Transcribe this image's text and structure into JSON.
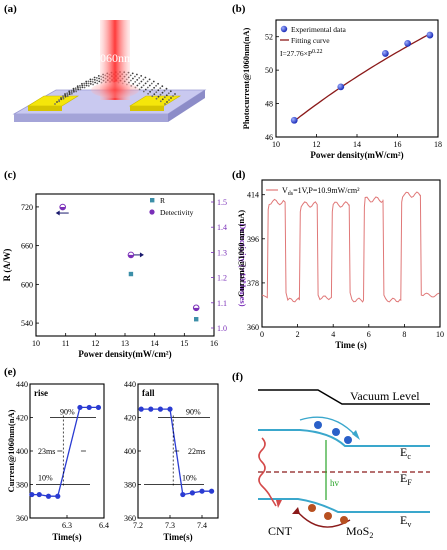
{
  "figure": {
    "panel_labels": [
      "(a)",
      "(b)",
      "(c)",
      "(d)",
      "(e)",
      "(f)"
    ],
    "colors": {
      "blue": "#2a3bd2",
      "darkred": "#8b1a1a",
      "purple": "#7a2fb8",
      "teal": "#3c8fa8",
      "pink": "#e07878",
      "green": "#2aa52a",
      "laser": "#e85a5a",
      "electrode": "#f5e60a",
      "substrate": "#b9b9e8",
      "band": "#3aa7cc",
      "fermi": "#8b1a1a"
    }
  },
  "panel_a": {
    "laser_label": "1060nm"
  },
  "panel_f": {
    "vacuum_label": "Vacuum Level",
    "ec_label": "E",
    "ec_sub": "c",
    "ef_label": "E",
    "ef_sub": "F",
    "ev_label": "E",
    "ev_sub": "v",
    "hv_label": "hv",
    "cnt_label": "CNT",
    "mos2_label": "MoS",
    "mos2_sub": "2"
  },
  "chart_data": [
    {
      "panel": "b",
      "type": "scatter",
      "xlabel": "Power density(mW/cm²)",
      "ylabel": "Photocurrent@1060nm(nA)",
      "xlim": [
        10,
        18
      ],
      "ylim": [
        46,
        53
      ],
      "xticks": [
        "10",
        "12",
        "14",
        "16",
        "18"
      ],
      "yticks": [
        "46",
        "48",
        "50",
        "52"
      ],
      "legend": [
        "Experimental data",
        "Fitting curve"
      ],
      "annotation": "I=27.76×P",
      "annotation_exp": "0.22",
      "points": [
        {
          "x": 10.9,
          "y": 47.0
        },
        {
          "x": 13.2,
          "y": 49.0
        },
        {
          "x": 15.4,
          "y": 51.0
        },
        {
          "x": 16.5,
          "y": 51.6
        },
        {
          "x": 17.6,
          "y": 52.1
        }
      ],
      "fit": {
        "a": 27.76,
        "b": 0.22,
        "x_range": [
          10.9,
          17.6
        ]
      }
    },
    {
      "panel": "c",
      "type": "scatter",
      "xlabel": "Power density(mW/cm²)",
      "ylabel": "R (A/W)",
      "ylabel2": "Detectivity (×10⁹Jones)",
      "xlim": [
        10,
        16
      ],
      "ylim": [
        520,
        740
      ],
      "ylim2": [
        1.0,
        1.5
      ],
      "xticks": [
        "10",
        "11",
        "12",
        "13",
        "14",
        "15",
        "16"
      ],
      "yticks": [
        "540",
        "600",
        "660",
        "720"
      ],
      "yticks2": [
        "1.0",
        "1.1",
        "1.2",
        "1.3",
        "1.4",
        "1.5"
      ],
      "legend": [
        "R",
        "Detectivity"
      ],
      "series": [
        {
          "name": "R",
          "axis": "left",
          "points": [
            {
              "x": 10.9,
              "y": 720
            },
            {
              "x": 13.2,
              "y": 616
            },
            {
              "x": 15.4,
              "y": 546
            }
          ]
        },
        {
          "name": "Detectivity",
          "axis": "right",
          "points": [
            {
              "x": 10.9,
              "y": 1.48
            },
            {
              "x": 13.2,
              "y": 1.29
            },
            {
              "x": 15.4,
              "y": 1.08
            }
          ]
        }
      ]
    },
    {
      "panel": "d",
      "type": "line",
      "xlabel": "Time (s)",
      "ylabel": "Current@1060 nm (nA)",
      "legend_main": "V",
      "legend_sub": "ds",
      "legend_rest": "=1V,P=10.9mW/cm²",
      "xlim": [
        0,
        10
      ],
      "ylim": [
        360,
        420
      ],
      "xticks": [
        "0",
        "2",
        "4",
        "6",
        "8",
        "10"
      ],
      "yticks": [
        "360",
        "378",
        "396",
        "414"
      ],
      "cycles": [
        {
          "on_start": 0.3,
          "on_end": 1.3,
          "high": 411,
          "low": 372
        },
        {
          "on_start": 2.1,
          "on_end": 3.1,
          "high": 410,
          "low": 371
        },
        {
          "on_start": 3.9,
          "on_end": 4.9,
          "high": 410,
          "low": 372
        },
        {
          "on_start": 5.7,
          "on_end": 6.8,
          "high": 412,
          "low": 371
        },
        {
          "on_start": 7.8,
          "on_end": 8.9,
          "high": 414,
          "low": 371
        }
      ],
      "baseline": 373
    },
    {
      "panel": "e-rise",
      "type": "line",
      "title": "rise",
      "xlabel": "Time(s)",
      "ylabel": "Current@1060nm(nA)",
      "xlim": [
        6.2,
        6.4
      ],
      "ylim": [
        360,
        440
      ],
      "xticks": [
        "6.3",
        "6.4"
      ],
      "yticks": [
        "360",
        "380",
        "400",
        "420",
        "440"
      ],
      "points": [
        {
          "x": 6.205,
          "y": 374
        },
        {
          "x": 6.225,
          "y": 374
        },
        {
          "x": 6.25,
          "y": 373
        },
        {
          "x": 6.275,
          "y": 373
        },
        {
          "x": 6.335,
          "y": 426
        },
        {
          "x": 6.36,
          "y": 426
        },
        {
          "x": 6.385,
          "y": 426
        }
      ],
      "annotations": [
        "90%",
        "10%",
        "23ms"
      ]
    },
    {
      "panel": "e-fall",
      "type": "line",
      "title": "fall",
      "xlabel": "Time(s)",
      "xlim": [
        7.2,
        7.45
      ],
      "ylim": [
        360,
        440
      ],
      "xticks": [
        "7.2",
        "7.3",
        "7.4"
      ],
      "yticks": [
        "360",
        "380",
        "400",
        "420",
        "440"
      ],
      "points": [
        {
          "x": 7.21,
          "y": 425
        },
        {
          "x": 7.24,
          "y": 425
        },
        {
          "x": 7.27,
          "y": 425
        },
        {
          "x": 7.3,
          "y": 425
        },
        {
          "x": 7.34,
          "y": 374
        },
        {
          "x": 7.37,
          "y": 375
        },
        {
          "x": 7.4,
          "y": 376
        },
        {
          "x": 7.43,
          "y": 376
        }
      ],
      "annotations": [
        "90%",
        "10%",
        "22ms"
      ]
    }
  ]
}
